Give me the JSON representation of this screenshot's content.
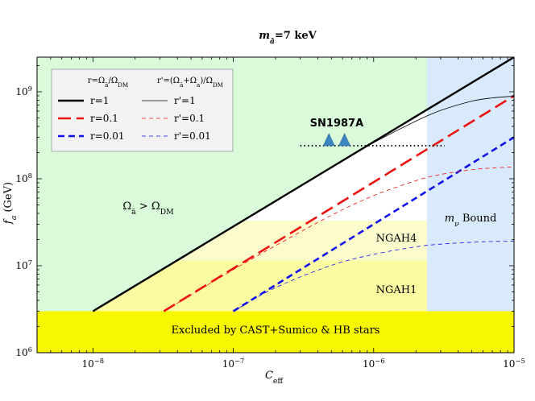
{
  "chart_data": {
    "type": "line",
    "title": "mā=7 keV",
    "title_parts": {
      "m": "m",
      "sub": "ā",
      "rest": "=7 keV"
    },
    "xlabel": "C",
    "xlabel_sub": "eff",
    "ylabel": "f",
    "ylabel_sub": "a",
    "ylabel_unit": " (GeV)",
    "x_scale": "log",
    "y_scale": "log",
    "xlim": [
      4e-09,
      1e-05
    ],
    "ylim": [
      1000000.0,
      2500000000.0
    ],
    "x_ticks": [
      {
        "value": 1e-08,
        "base": "10",
        "exp": "−8"
      },
      {
        "value": 1e-07,
        "base": "10",
        "exp": "−7"
      },
      {
        "value": 1e-06,
        "base": "10",
        "exp": "−6"
      },
      {
        "value": 1e-05,
        "base": "10",
        "exp": "−5"
      }
    ],
    "y_ticks": [
      {
        "value": 1000000.0,
        "base": "10",
        "exp": "6"
      },
      {
        "value": 10000000.0,
        "base": "10",
        "exp": "7"
      },
      {
        "value": 100000000.0,
        "base": "10",
        "exp": "8"
      },
      {
        "value": 1000000000.0,
        "base": "10",
        "exp": "9"
      }
    ],
    "regions": [
      {
        "id": "overabundant",
        "label": "Ωā > ΩDM",
        "label_parts": [
          "Ω",
          "ā",
          " > Ω",
          "DM"
        ],
        "color": "#d9fbd9"
      },
      {
        "id": "mnu-bound",
        "label": "mν Bound",
        "label_parts": [
          "m",
          "ν",
          " Bound"
        ],
        "color": "#d8eafb",
        "x_from": 2.4e-06
      },
      {
        "id": "ngah4",
        "label": "NGAH4",
        "color": "#fbfbcc",
        "y_range": [
          11500000.0,
          33000000.0
        ],
        "x_to": 2.4e-06
      },
      {
        "id": "ngah1",
        "label": "NGAH1",
        "color": "#fbfba2",
        "y_range": [
          3000000.0,
          11500000.0
        ],
        "x_to": 2.4e-06
      },
      {
        "id": "excluded",
        "label": "Excluded by CAST+Sumico & HB stars",
        "color": "#f7f700",
        "y_range": [
          1000000.0,
          3000000.0
        ]
      }
    ],
    "series": [
      {
        "name": "r=1",
        "color": "#000000",
        "style": "solid",
        "width": 2.4,
        "points": [
          [
            1e-08,
            3000000.0
          ],
          [
            1e-05,
            2500000000.0
          ]
        ]
      },
      {
        "name": "r=0.1",
        "color": "#ee1111",
        "style": "long-dash",
        "width": 2.6,
        "points": [
          [
            3.2e-08,
            3000000.0
          ],
          [
            1e-05,
            900000000.0
          ]
        ]
      },
      {
        "name": "r=0.01",
        "color": "#1111ee",
        "style": "dash",
        "width": 2.6,
        "points": [
          [
            1e-07,
            3000000.0
          ],
          [
            1e-05,
            300000000.0
          ]
        ]
      },
      {
        "name": "r'=1",
        "color": "#000000",
        "style": "thin-solid",
        "width": 0.8,
        "points": [
          [
            1e-08,
            3000000.0
          ],
          [
            1e-07,
            28500000.0
          ],
          [
            2e-07,
            55000000.0
          ],
          [
            5e-07,
            135000000.0
          ],
          [
            1e-06,
            260000000.0
          ],
          [
            2e-06,
            460000000.0
          ],
          [
            3e-06,
            610000000.0
          ],
          [
            5e-06,
            780000000.0
          ],
          [
            7e-06,
            850000000.0
          ],
          [
            1e-05,
            890000000.0
          ]
        ]
      },
      {
        "name": "r'=0.1",
        "color": "#ee1111",
        "style": "thin-dash",
        "width": 0.8,
        "points": [
          [
            3.2e-08,
            3000000.0
          ],
          [
            1e-07,
            9000000.0
          ],
          [
            2e-07,
            17000000.0
          ],
          [
            5e-07,
            38000000.0
          ],
          [
            1e-06,
            64000000.0
          ],
          [
            2e-06,
            95000000.0
          ],
          [
            3e-06,
            112000000.0
          ],
          [
            5e-06,
            127000000.0
          ],
          [
            7e-06,
            133000000.0
          ],
          [
            1e-05,
            137000000.0
          ]
        ]
      },
      {
        "name": "r'=0.01",
        "color": "#1111ee",
        "style": "thin-dash",
        "width": 0.8,
        "points": [
          [
            1e-07,
            3000000.0
          ],
          [
            2e-07,
            5600000.0
          ],
          [
            5e-07,
            10100000.0
          ],
          [
            1e-06,
            13500000.0
          ],
          [
            2e-06,
            16500000.0
          ],
          [
            3e-06,
            17700000.0
          ],
          [
            5e-06,
            18600000.0
          ],
          [
            7e-06,
            19000000.0
          ],
          [
            1e-05,
            19200000.0
          ]
        ]
      }
    ],
    "sn1987a": {
      "label": "SN1987A",
      "line_y": 240000000.0,
      "line_x": [
        3e-07,
        3.2e-06
      ],
      "markers_x": [
        4.8e-07,
        6.2e-07
      ],
      "marker_color": "#3a85be"
    },
    "legend": {
      "placement": "top-left",
      "header_left": "r=Ωā/ΩDM",
      "header_left_parts": [
        "r=Ω",
        "ā",
        "/Ω",
        "DM"
      ],
      "header_right": "r'=(Ωā+Ωa)/ΩDM",
      "header_right_parts": [
        "r'=(Ω",
        "ā",
        "+Ω",
        "a",
        ")/Ω",
        "DM"
      ]
    }
  }
}
